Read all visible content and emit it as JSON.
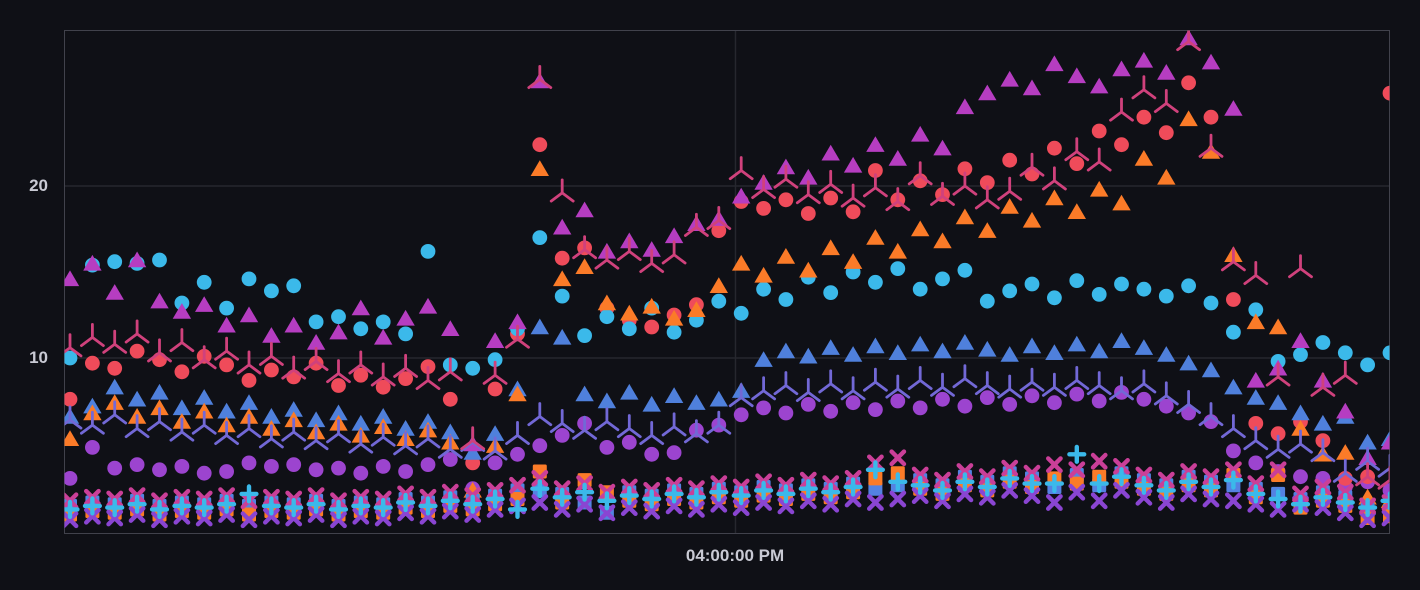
{
  "panel": {
    "background": "#0f1016",
    "plot_border_color": "#41424c",
    "grid_color": "#26272e",
    "tick_text_color": "#c9cad4"
  },
  "chart_data": {
    "type": "scatter",
    "title": "",
    "xlabel": "",
    "ylabel": "",
    "legend": "none",
    "grid": true,
    "ylim": [
      0,
      29.1
    ],
    "yticks": [
      {
        "value": 20,
        "label": "20"
      },
      {
        "value": 10,
        "label": "10"
      }
    ],
    "xticks": [
      {
        "label": "04:00:00 PM",
        "fraction": 0.5064
      }
    ],
    "x_points": 60,
    "series": [
      {
        "name": "purple-circles",
        "marker": "circle",
        "color": "#9c44cf",
        "values": [
          3.0,
          4.8,
          3.6,
          3.8,
          3.5,
          3.7,
          3.3,
          3.4,
          3.9,
          3.7,
          3.8,
          3.5,
          3.6,
          3.3,
          3.7,
          3.4,
          3.8,
          4.1,
          2.4,
          3.9,
          4.4,
          4.9,
          5.5,
          6.2,
          4.8,
          5.1,
          4.4,
          4.5,
          5.8,
          6.1,
          6.7,
          7.1,
          6.8,
          7.3,
          6.9,
          7.4,
          7.0,
          7.5,
          7.1,
          7.6,
          7.2,
          7.7,
          7.3,
          7.8,
          7.4,
          7.9,
          7.5,
          8.0,
          7.6,
          7.2,
          6.8,
          6.3,
          4.6,
          3.9,
          3.4,
          3.1,
          3.0,
          2.5,
          2.8,
          2.3
        ]
      },
      {
        "name": "red-circles",
        "marker": "circle",
        "color": "#ef4b5a",
        "values": [
          7.6,
          9.7,
          9.4,
          10.4,
          9.9,
          9.2,
          10.1,
          9.6,
          8.7,
          9.3,
          8.9,
          9.7,
          8.4,
          9.0,
          8.3,
          8.8,
          9.5,
          7.6,
          3.9,
          8.2,
          11.4,
          22.4,
          15.8,
          16.4,
          12.9,
          12.2,
          11.8,
          12.5,
          13.1,
          17.4,
          19.1,
          18.7,
          19.2,
          18.4,
          19.3,
          18.5,
          20.9,
          19.2,
          20.3,
          19.5,
          21.0,
          20.2,
          21.5,
          20.7,
          22.2,
          21.3,
          23.2,
          22.4,
          24.0,
          23.1,
          26.0,
          24.0,
          13.4,
          6.2,
          5.6,
          6.3,
          5.2,
          3.0,
          3.1,
          25.4
        ]
      },
      {
        "name": "cyan-circles",
        "marker": "circle",
        "color": "#3bb9ea",
        "values": [
          10.0,
          15.4,
          15.6,
          15.5,
          15.7,
          13.2,
          14.4,
          12.9,
          14.6,
          13.9,
          14.2,
          12.1,
          12.4,
          11.7,
          12.1,
          11.4,
          16.2,
          9.6,
          9.4,
          9.9,
          11.7,
          17.0,
          13.6,
          11.3,
          12.4,
          11.7,
          12.9,
          11.5,
          12.2,
          13.3,
          12.6,
          14.0,
          13.4,
          14.7,
          13.8,
          15.0,
          14.4,
          15.2,
          14.0,
          14.6,
          15.1,
          13.3,
          13.9,
          14.3,
          13.5,
          14.5,
          13.7,
          14.3,
          14.0,
          13.6,
          14.2,
          13.2,
          11.5,
          12.8,
          9.8,
          10.2,
          10.9,
          10.3,
          9.6,
          10.3
        ]
      },
      {
        "name": "blue-triangles",
        "marker": "triangle",
        "color": "#4f80dc",
        "values": [
          6.6,
          7.2,
          8.3,
          7.6,
          8.0,
          7.1,
          7.7,
          6.9,
          7.4,
          6.6,
          7.0,
          6.4,
          6.8,
          6.2,
          6.6,
          5.9,
          6.3,
          5.7,
          4.5,
          5.6,
          8.2,
          11.8,
          11.2,
          7.9,
          7.5,
          8.0,
          7.3,
          7.8,
          7.4,
          7.6,
          8.1,
          9.9,
          10.4,
          10.1,
          10.6,
          10.2,
          10.7,
          10.3,
          10.8,
          10.4,
          10.9,
          10.5,
          10.2,
          10.7,
          10.3,
          10.8,
          10.4,
          11.0,
          10.6,
          10.2,
          9.7,
          9.3,
          8.3,
          7.7,
          7.4,
          6.8,
          6.2,
          6.6,
          5.1,
          5.3
        ]
      },
      {
        "name": "orange-triangles",
        "marker": "triangle",
        "color": "#fb7b28",
        "values": [
          5.3,
          6.8,
          7.4,
          6.6,
          7.1,
          6.3,
          6.9,
          6.1,
          6.6,
          5.9,
          6.4,
          5.7,
          6.2,
          5.5,
          6.0,
          5.3,
          5.8,
          5.1,
          2.3,
          4.9,
          7.9,
          21.0,
          14.6,
          15.3,
          13.2,
          12.6,
          13.0,
          12.3,
          12.8,
          14.2,
          15.5,
          14.8,
          15.9,
          15.1,
          16.4,
          15.6,
          17.0,
          16.2,
          17.5,
          16.8,
          18.2,
          17.4,
          18.8,
          18.0,
          19.3,
          18.5,
          19.8,
          19.0,
          21.6,
          20.5,
          23.9,
          22.0,
          16.0,
          12.1,
          11.8,
          5.9,
          4.4,
          4.5,
          1.9,
          1.7
        ]
      },
      {
        "name": "magenta-triangles",
        "marker": "triangle",
        "color": "#b63dc1",
        "values": [
          14.6,
          15.5,
          13.8,
          15.7,
          13.3,
          12.7,
          13.1,
          11.9,
          12.5,
          11.3,
          11.9,
          10.9,
          11.5,
          12.9,
          11.2,
          12.3,
          13.0,
          11.7,
          5.0,
          11.0,
          12.1,
          26.1,
          17.6,
          18.6,
          16.2,
          16.8,
          16.3,
          17.1,
          17.8,
          18.1,
          19.4,
          20.2,
          21.1,
          20.5,
          21.9,
          21.2,
          22.4,
          21.6,
          23.0,
          22.2,
          24.6,
          25.4,
          26.2,
          25.7,
          27.1,
          26.4,
          25.8,
          26.8,
          27.3,
          26.6,
          28.6,
          27.2,
          24.5,
          8.7,
          9.4,
          11.0,
          8.7,
          6.9,
          4.2,
          5.1
        ]
      },
      {
        "name": "violet-tri-spokes",
        "marker": "tri-spoke",
        "color": "#7268d6",
        "values": [
          6.4,
          6.1,
          6.7,
          5.9,
          6.3,
          5.7,
          6.1,
          5.5,
          5.9,
          5.3,
          5.7,
          5.2,
          5.6,
          5.0,
          5.4,
          4.9,
          5.3,
          4.7,
          5.1,
          4.6,
          5.5,
          6.6,
          6.2,
          5.8,
          6.3,
          5.9,
          5.5,
          6.0,
          5.6,
          6.1,
          7.7,
          8.1,
          8.4,
          8.0,
          8.5,
          8.1,
          8.6,
          8.2,
          8.7,
          8.3,
          8.8,
          8.4,
          8.2,
          8.6,
          8.3,
          8.7,
          8.4,
          8.1,
          8.5,
          7.8,
          7.3,
          6.6,
          5.9,
          5.2,
          4.7,
          5.0,
          4.5,
          3.3,
          4.0,
          3.6
        ]
      },
      {
        "name": "rose-tri-spokes",
        "marker": "tri-spoke",
        "color": "#d0417c",
        "values": [
          10.6,
          11.2,
          10.8,
          11.4,
          10.3,
          10.9,
          9.9,
          10.4,
          9.6,
          10.1,
          9.3,
          9.8,
          9.1,
          9.6,
          8.9,
          9.4,
          8.7,
          9.2,
          5.2,
          9.0,
          11.1,
          26.2,
          19.6,
          16.3,
          15.7,
          16.2,
          15.5,
          16.0,
          17.6,
          18.0,
          20.9,
          19.8,
          20.4,
          19.5,
          20.1,
          19.3,
          19.9,
          19.1,
          20.6,
          19.4,
          20.0,
          19.2,
          19.7,
          21.1,
          20.3,
          22.0,
          21.4,
          24.3,
          25.6,
          24.8,
          28.4,
          22.2,
          15.6,
          14.8,
          8.9,
          15.2,
          8.3,
          9.0,
          3.1,
          2.9
        ]
      },
      {
        "name": "blue-squares",
        "marker": "square",
        "color": "#5482e2",
        "values": [
          1.4,
          1.6,
          1.5,
          1.7,
          1.4,
          1.6,
          1.5,
          1.7,
          1.4,
          1.6,
          1.5,
          1.7,
          1.4,
          1.6,
          1.5,
          1.8,
          1.6,
          1.9,
          1.7,
          2.0,
          2.3,
          2.3,
          2.1,
          1.6,
          1.0,
          2.2,
          2.0,
          2.3,
          2.1,
          2.4,
          2.2,
          2.5,
          2.3,
          2.6,
          2.4,
          2.7,
          2.4,
          2.6,
          2.9,
          2.6,
          3.1,
          2.8,
          3.3,
          3.0,
          2.5,
          3.2,
          2.6,
          3.3,
          2.9,
          2.6,
          3.1,
          2.8,
          2.6,
          2.4,
          2.1,
          1.8,
          2.2,
          1.9,
          1.2,
          1.1
        ]
      },
      {
        "name": "orange-squares",
        "marker": "square",
        "color": "#fb7b28",
        "values": [
          0.9,
          1.1,
          1.0,
          1.2,
          0.9,
          1.1,
          1.0,
          1.2,
          0.9,
          1.1,
          1.0,
          1.2,
          0.9,
          1.1,
          1.0,
          1.3,
          1.1,
          1.4,
          1.2,
          1.5,
          1.8,
          3.4,
          1.6,
          2.9,
          2.2,
          1.7,
          1.5,
          1.8,
          1.6,
          1.9,
          1.7,
          2.0,
          1.8,
          2.1,
          1.9,
          2.2,
          3.0,
          3.3,
          2.4,
          2.1,
          2.6,
          2.3,
          2.8,
          2.5,
          3.0,
          2.7,
          3.1,
          2.8,
          2.4,
          2.1,
          2.6,
          2.3,
          3.2,
          1.9,
          3.2,
          1.3,
          1.7,
          1.4,
          0.7,
          0.8
        ]
      },
      {
        "name": "purple-x-marks",
        "marker": "x",
        "color": "#8a45d2",
        "values": [
          0.6,
          0.8,
          0.7,
          0.9,
          0.6,
          0.8,
          0.7,
          0.9,
          0.6,
          0.8,
          0.7,
          0.9,
          0.6,
          0.8,
          0.7,
          1.0,
          0.8,
          1.1,
          0.9,
          1.2,
          1.4,
          1.6,
          1.2,
          1.5,
          1.0,
          1.3,
          1.1,
          1.4,
          1.2,
          1.5,
          1.3,
          1.6,
          1.4,
          1.7,
          1.5,
          1.8,
          1.6,
          1.8,
          2.0,
          1.7,
          2.1,
          1.9,
          2.3,
          2.0,
          1.6,
          2.2,
          1.7,
          2.3,
          1.9,
          1.6,
          2.1,
          1.8,
          1.7,
          1.5,
          1.2,
          1.5,
          1.3,
          1.0,
          0.6,
          0.7
        ]
      },
      {
        "name": "magenta-x-marks",
        "marker": "x",
        "color": "#ca3f98",
        "values": [
          1.7,
          1.9,
          1.8,
          2.0,
          1.7,
          1.9,
          1.8,
          2.0,
          1.7,
          1.9,
          1.8,
          2.0,
          1.7,
          1.9,
          1.8,
          2.1,
          1.9,
          2.2,
          2.0,
          2.3,
          2.6,
          3.0,
          2.4,
          2.7,
          2.2,
          2.5,
          2.3,
          2.6,
          2.4,
          2.7,
          2.5,
          2.8,
          2.6,
          2.9,
          2.7,
          3.0,
          3.9,
          4.2,
          3.2,
          2.9,
          3.4,
          3.1,
          3.6,
          3.3,
          3.8,
          3.5,
          4.0,
          3.7,
          3.2,
          2.9,
          3.4,
          3.1,
          3.5,
          2.7,
          3.5,
          2.1,
          2.5,
          2.2,
          1.4,
          1.6
        ]
      },
      {
        "name": "cyan-plus-marks",
        "marker": "plus",
        "color": "#3bb9ea",
        "values": [
          1.2,
          1.4,
          1.3,
          1.5,
          1.2,
          1.4,
          1.3,
          1.5,
          2.1,
          1.4,
          1.3,
          1.5,
          1.2,
          1.4,
          1.3,
          1.6,
          1.4,
          1.7,
          1.5,
          1.8,
          1.2,
          2.4,
          1.9,
          2.2,
          1.7,
          2.0,
          1.8,
          2.1,
          1.9,
          2.2,
          2.0,
          2.3,
          2.1,
          2.4,
          2.2,
          2.5,
          3.5,
          2.8,
          2.6,
          2.3,
          2.8,
          2.5,
          3.0,
          2.7,
          2.7,
          4.4,
          2.7,
          3.1,
          2.6,
          2.3,
          2.8,
          2.5,
          2.9,
          2.1,
          1.8,
          1.5,
          1.9,
          1.6,
          1.3,
          1.7
        ]
      }
    ]
  }
}
